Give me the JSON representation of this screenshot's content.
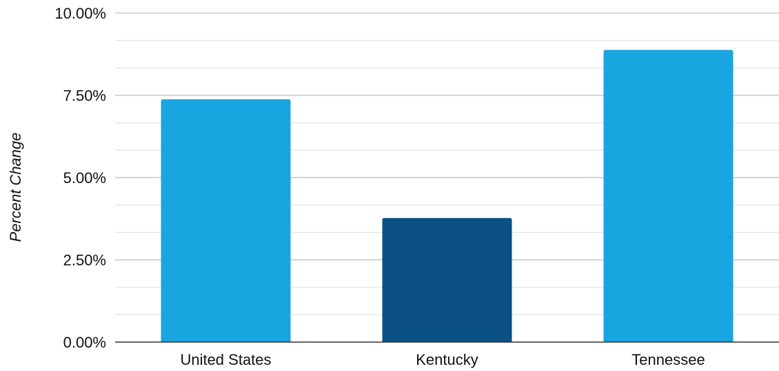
{
  "chart_data": {
    "type": "bar",
    "title": "",
    "xlabel": "",
    "ylabel": "Percent Change",
    "categories": [
      "United States",
      "Kentucky",
      "Tennessee"
    ],
    "values": [
      7.38,
      3.77,
      8.88
    ],
    "bar_colors": [
      "#19a5df",
      "#0a5082",
      "#19a5df"
    ],
    "ylim": [
      0,
      10
    ],
    "y_ticks": [
      0,
      2.5,
      5,
      7.5,
      10
    ],
    "y_tick_labels": [
      "0.00%",
      "2.50%",
      "5.00%",
      "7.50%",
      "10.00%"
    ],
    "minor_grid_step": 0.833333,
    "grid": true,
    "legend": "none",
    "colors": {
      "major_grid": "#cccccc",
      "minor_grid": "#e6e6e6",
      "axis_line": "#333333",
      "text": "#111111"
    }
  }
}
